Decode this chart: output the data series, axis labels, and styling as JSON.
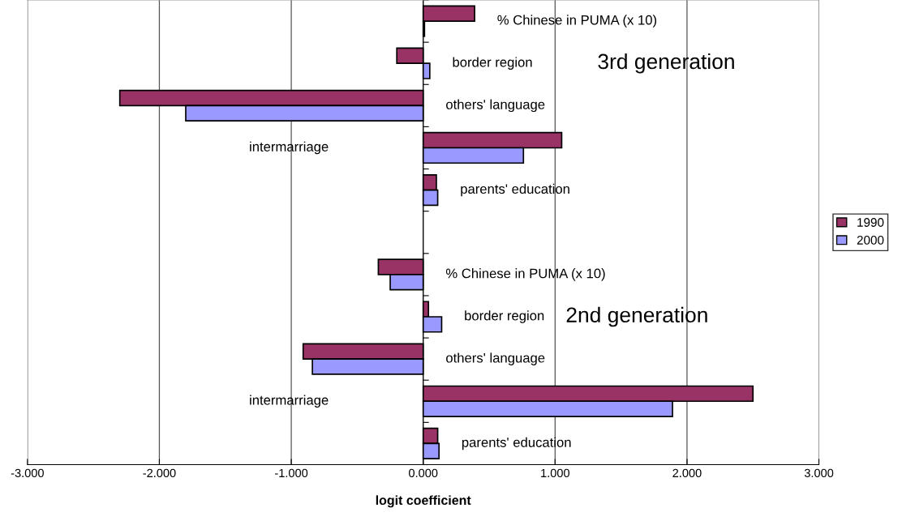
{
  "chart_data": {
    "type": "bar",
    "orientation": "horizontal",
    "xlabel": "logit coefficient",
    "categories": [
      "% Chinese in PUMA (x 10)",
      "border region",
      "others' language",
      "intermarriage",
      "parents' education",
      null,
      "% Chinese in PUMA (x 10)",
      "border region",
      "others' language",
      "intermarriage",
      "parents' education"
    ],
    "series": [
      {
        "name": "1990",
        "color": "#993366",
        "values": [
          0.39,
          -0.2,
          -2.3,
          1.05,
          0.1,
          null,
          -0.34,
          0.04,
          -0.91,
          2.5,
          0.11
        ]
      },
      {
        "name": "2000",
        "color": "#9999ff",
        "values": [
          0.01,
          0.05,
          -1.8,
          0.76,
          0.11,
          null,
          -0.25,
          0.14,
          -0.84,
          1.89,
          0.12
        ]
      }
    ],
    "xlim": [
      -3,
      3
    ],
    "xticks": [
      {
        "value": -3,
        "label": "-3.000"
      },
      {
        "value": -2,
        "label": "-2.000"
      },
      {
        "value": -1,
        "label": "-1.000"
      },
      {
        "value": 0,
        "label": "0.000"
      },
      {
        "value": 1,
        "label": "1.000"
      },
      {
        "value": 2,
        "label": "2.000"
      },
      {
        "value": 3,
        "label": "3.000"
      }
    ],
    "annotations": [
      "3rd generation",
      "2nd generation"
    ],
    "grid": "x",
    "legend": "right"
  }
}
